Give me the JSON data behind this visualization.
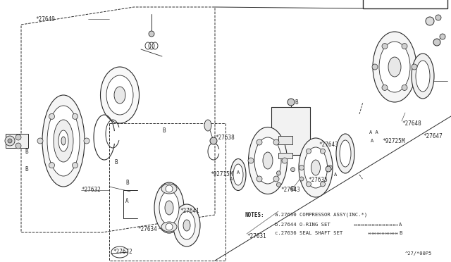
{
  "bg_color": "#ffffff",
  "line_color": "#2a2a2a",
  "figsize": [
    6.4,
    3.72
  ],
  "dpi": 100,
  "notes_line1": "NOTES:  a.27630 COMPRESSOR ASSY(INC.*)",
  "notes_line2": "b.27644 O-RING SET",
  "notes_line3": "c.27636 SEAL SHAFT SET",
  "code": "^27/*00P5"
}
